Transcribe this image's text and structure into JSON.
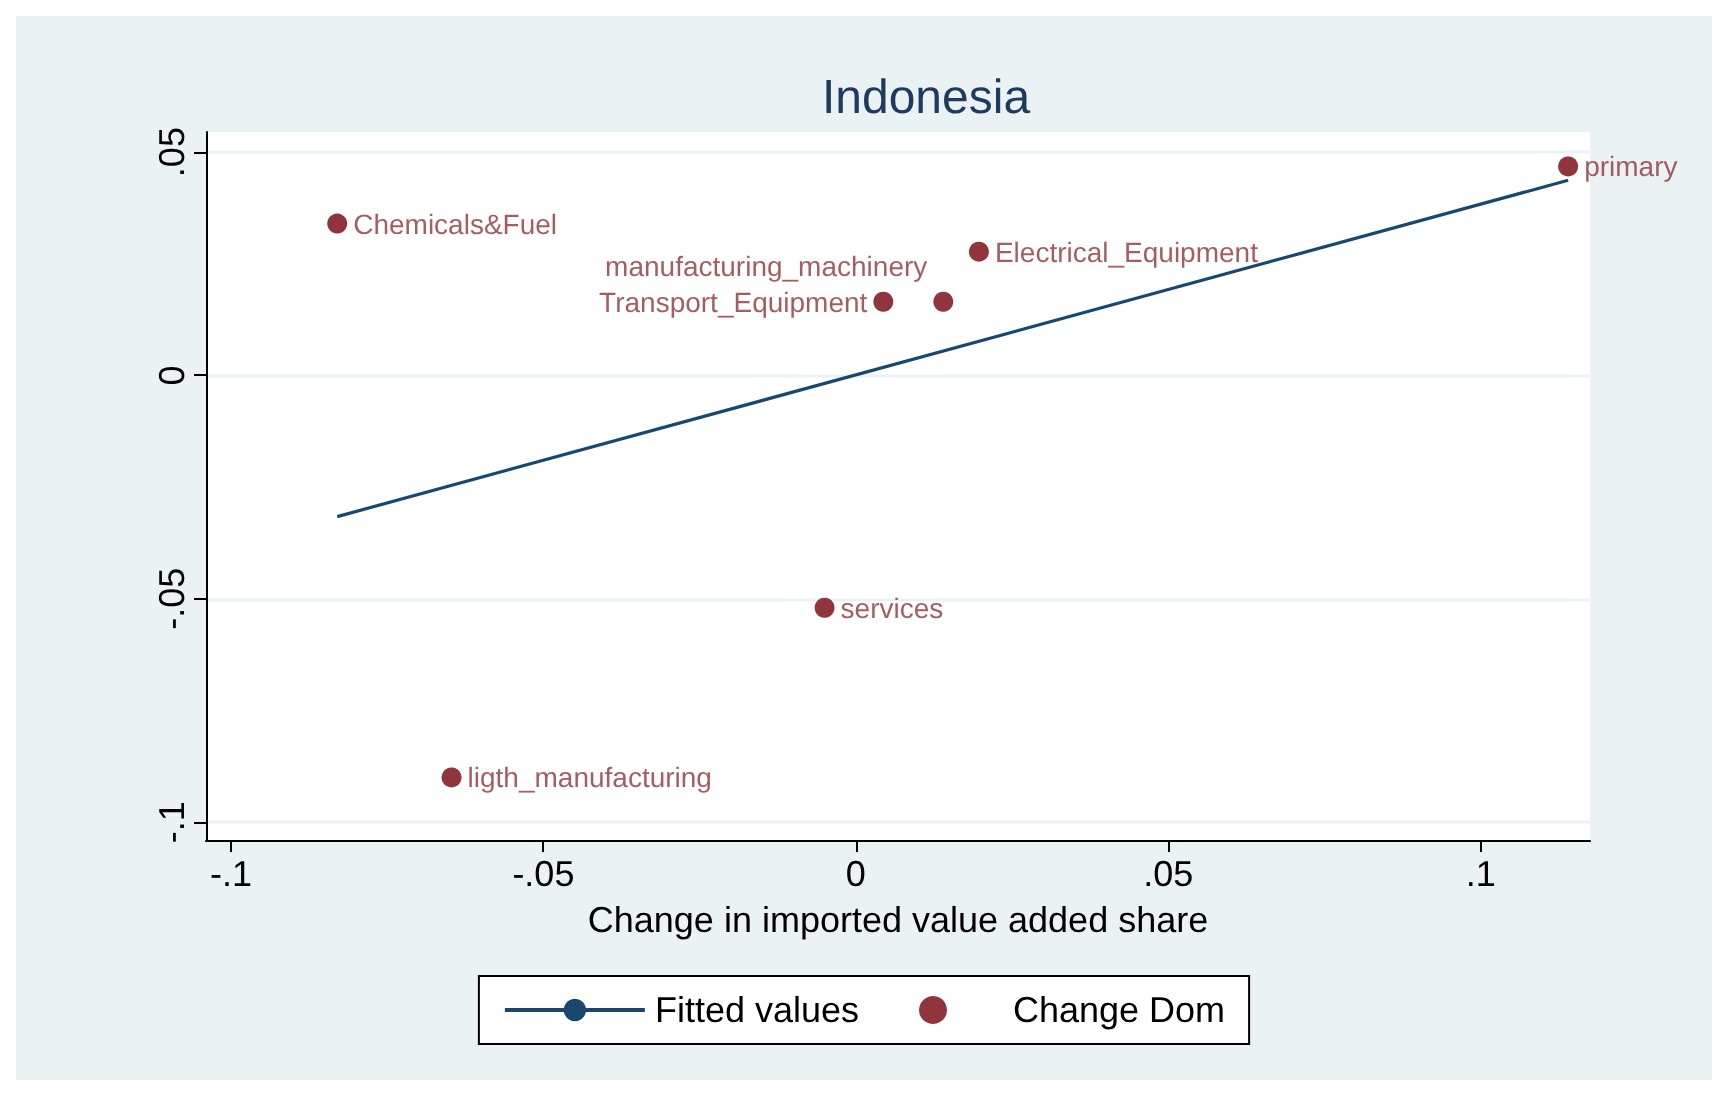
{
  "chart_data": {
    "type": "scatter",
    "title": "Indonesia",
    "xlabel": "Change in imported value added share",
    "series": [
      {
        "name": "Fitted values",
        "type": "line",
        "color": "#1a476f",
        "marker": "none",
        "x": [
          -0.083,
          0.114
        ],
        "values": [
          -0.0316,
          0.0437
        ]
      },
      {
        "name": "Change Dom",
        "type": "scatter",
        "color": "#90353b",
        "marker": "circle",
        "x": [
          0.114,
          -0.083,
          0.0197,
          0.0044,
          0.014,
          -0.005,
          -0.0647
        ],
        "values": [
          0.0468,
          0.034,
          0.0277,
          0.0165,
          0.0165,
          -0.052,
          -0.09
        ]
      }
    ],
    "annotations": [
      {
        "text": "primary",
        "x": 0.114,
        "y": 0.0468
      },
      {
        "text": "Chemicals&Fuel",
        "x": -0.083,
        "y": 0.034
      },
      {
        "text": "Electrical_Equipment",
        "x": 0.0197,
        "y": 0.0277
      },
      {
        "text": "Transport_Equipment",
        "x": 0.0044,
        "y": 0.0165
      },
      {
        "text": "manufacturing_machinery",
        "x": 0.014,
        "y": 0.0165
      },
      {
        "text": "services",
        "x": -0.005,
        "y": -0.052
      },
      {
        "text": "ligth_manufacturing",
        "x": -0.0647,
        "y": -0.09
      }
    ],
    "xlim": [
      -0.104,
      0.1175
    ],
    "ylim": [
      -0.104,
      0.0545
    ],
    "xticks": [
      {
        "value": -0.1,
        "label": "-.1"
      },
      {
        "value": -0.05,
        "label": "-.05"
      },
      {
        "value": 0,
        "label": "0"
      },
      {
        "value": 0.05,
        "label": ".05"
      },
      {
        "value": 0.1,
        "label": ".1"
      }
    ],
    "yticks": [
      {
        "value": -0.1,
        "label": "-.1"
      },
      {
        "value": -0.05,
        "label": "-.05"
      },
      {
        "value": 0,
        "label": "0"
      },
      {
        "value": 0.05,
        "label": ".05"
      }
    ],
    "grid": "y",
    "legend": "bottom"
  }
}
